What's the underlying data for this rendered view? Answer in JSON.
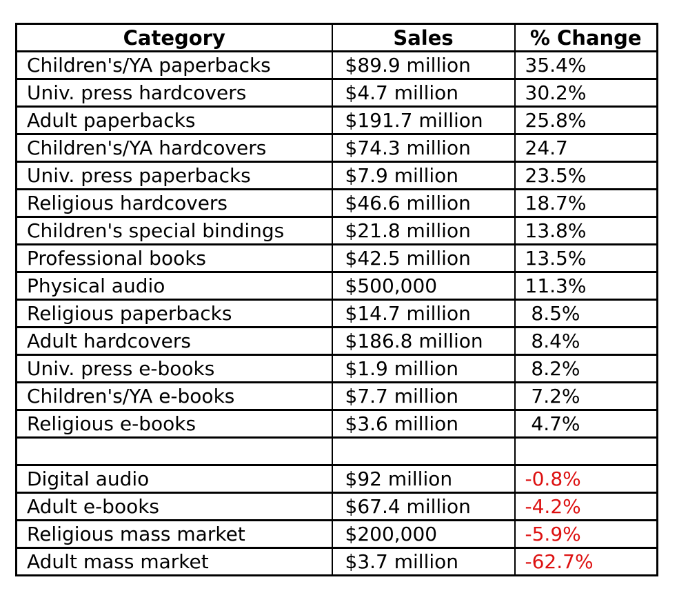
{
  "table": {
    "headers": [
      "Category",
      "Sales",
      "% Change"
    ],
    "negative_color": "#dd1111",
    "text_color": "#000000",
    "border_color": "#000000",
    "rows": [
      {
        "category": "Children's/YA paperbacks",
        "sales": "$89.9 million",
        "change": "35.4%",
        "negative": false,
        "spacer": false
      },
      {
        "category": "Univ. press hardcovers",
        "sales": "$4.7 million",
        "change": "30.2%",
        "negative": false,
        "spacer": false
      },
      {
        "category": "Adult paperbacks",
        "sales": "$191.7 million",
        "change": "25.8%",
        "negative": false,
        "spacer": false
      },
      {
        "category": "Children's/YA hardcovers",
        "sales": "$74.3 million",
        "change": "24.7",
        "negative": false,
        "spacer": false
      },
      {
        "category": "Univ. press paperbacks",
        "sales": "$7.9 million",
        "change": "23.5%",
        "negative": false,
        "spacer": false
      },
      {
        "category": "Religious hardcovers",
        "sales": "$46.6 million",
        "change": "18.7%",
        "negative": false,
        "spacer": false
      },
      {
        "category": "Children's special bindings",
        "sales": "$21.8 million",
        "change": "13.8%",
        "negative": false,
        "spacer": false
      },
      {
        "category": "Professional books",
        "sales": "$42.5 million",
        "change": "13.5%",
        "negative": false,
        "spacer": false
      },
      {
        "category": "Physical audio",
        "sales": "$500,000",
        "change": "11.3%",
        "negative": false,
        "spacer": false
      },
      {
        "category": "Religious paperbacks",
        "sales": "$14.7 million",
        "change": " 8.5%",
        "negative": false,
        "spacer": false
      },
      {
        "category": "Adult hardcovers",
        "sales": "$186.8 million",
        "change": " 8.4%",
        "negative": false,
        "spacer": false
      },
      {
        "category": "Univ. press e-books",
        "sales": "$1.9 million",
        "change": " 8.2%",
        "negative": false,
        "spacer": false
      },
      {
        "category": "Children's/YA e-books",
        "sales": "$7.7 million",
        "change": " 7.2%",
        "negative": false,
        "spacer": false
      },
      {
        "category": "Religious e-books",
        "sales": "$3.6 million",
        "change": " 4.7%",
        "negative": false,
        "spacer": false
      },
      {
        "category": "",
        "sales": "",
        "change": "",
        "negative": false,
        "spacer": true
      },
      {
        "category": "Digital audio",
        "sales": "$92 million",
        "change": "-0.8%",
        "negative": true,
        "spacer": false
      },
      {
        "category": "Adult e-books",
        "sales": "$67.4 million",
        "change": "-4.2%",
        "negative": true,
        "spacer": false
      },
      {
        "category": "Religious mass market",
        "sales": "$200,000",
        "change": "-5.9%",
        "negative": true,
        "spacer": false
      },
      {
        "category": "Adult mass market",
        "sales": "$3.7 million",
        "change": "-62.7%",
        "negative": true,
        "spacer": false
      }
    ]
  },
  "chart_data": {
    "type": "table",
    "columns": [
      "Category",
      "Sales",
      "% Change"
    ],
    "rows": [
      [
        "Children's/YA paperbacks",
        "$89.9 million",
        "35.4%"
      ],
      [
        "Univ. press hardcovers",
        "$4.7 million",
        "30.2%"
      ],
      [
        "Adult paperbacks",
        "$191.7 million",
        "25.8%"
      ],
      [
        "Children's/YA hardcovers",
        "$74.3 million",
        "24.7"
      ],
      [
        "Univ. press paperbacks",
        "$7.9 million",
        "23.5%"
      ],
      [
        "Religious hardcovers",
        "$46.6 million",
        "18.7%"
      ],
      [
        "Children's special bindings",
        "$21.8 million",
        "13.8%"
      ],
      [
        "Professional books",
        "$42.5 million",
        "13.5%"
      ],
      [
        "Physical audio",
        "$500,000",
        "11.3%"
      ],
      [
        "Religious paperbacks",
        "$14.7 million",
        "8.5%"
      ],
      [
        "Adult hardcovers",
        "$186.8 million",
        "8.4%"
      ],
      [
        "Univ. press e-books",
        "$1.9 million",
        "8.2%"
      ],
      [
        "Children's/YA e-books",
        "$7.7 million",
        "7.2%"
      ],
      [
        "Religious e-books",
        "$3.6 million",
        "4.7%"
      ],
      [
        "",
        "",
        ""
      ],
      [
        "Digital audio",
        "$92 million",
        "-0.8%"
      ],
      [
        "Adult e-books",
        "$67.4 million",
        "-4.2%"
      ],
      [
        "Religious mass market",
        "$200,000",
        "-5.9%"
      ],
      [
        "Adult mass market",
        "$3.7 million",
        "-62.7%"
      ]
    ],
    "sales_usd_millions": [
      89.9,
      4.7,
      191.7,
      74.3,
      7.9,
      46.6,
      21.8,
      42.5,
      0.5,
      14.7,
      186.8,
      1.9,
      7.7,
      3.6,
      null,
      92,
      67.4,
      0.2,
      3.7
    ],
    "pct_change": [
      35.4,
      30.2,
      25.8,
      24.7,
      23.5,
      18.7,
      13.8,
      13.5,
      11.3,
      8.5,
      8.4,
      8.2,
      7.2,
      4.7,
      null,
      -0.8,
      -4.2,
      -5.9,
      -62.7
    ],
    "negative_values_in_red": true,
    "grid": true,
    "legend_position": "none"
  }
}
